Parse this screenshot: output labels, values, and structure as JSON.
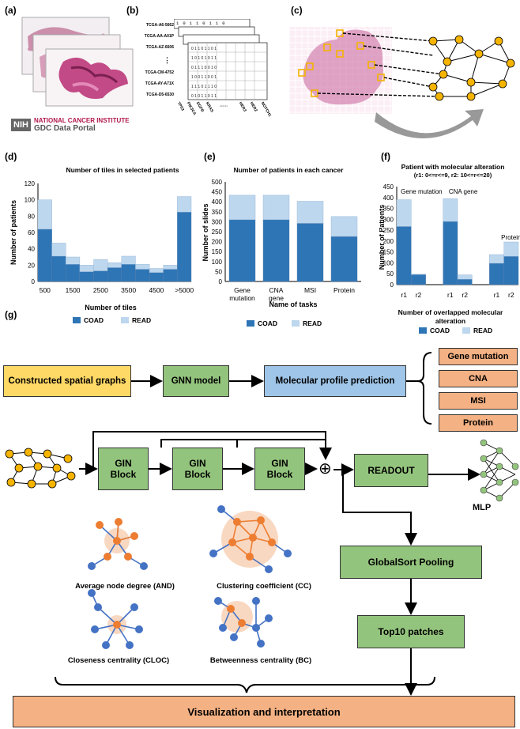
{
  "panels": {
    "a": "(a)",
    "b": "(b)",
    "c": "(c)",
    "d": "(d)",
    "e": "(e)",
    "f": "(f)",
    "g": "(g)"
  },
  "logo": {
    "nih": "NIH",
    "institute": "NATIONAL CANCER INSTITUTE",
    "portal": "GDC Data Portal"
  },
  "matrix": {
    "rows": [
      "TCGA-A6-5662",
      "TCGA-AA-A01P",
      "TCGA-AZ-6606",
      "⋮",
      "TCGA-CM-4752",
      "TCGA-AY-A71X",
      "TCGA-D5-6530"
    ],
    "cols": [
      "TP53",
      "PIK3CA",
      "EGFR",
      "KRAS",
      "······",
      "HER3",
      "HER2",
      "NOTCH1"
    ],
    "first_row": [
      "1",
      "0",
      "1",
      "1",
      "0",
      "1",
      "1",
      "0"
    ]
  },
  "colors": {
    "coad": "#2e75b6",
    "read": "#bdd7ee",
    "node": "#f5b400",
    "orange": "#f4b183",
    "green": "#93c47d",
    "blue": "#9fc5e8",
    "yellow": "#ffd966"
  },
  "legend": {
    "coad": "COAD",
    "read": "READ"
  },
  "chart_data": [
    {
      "type": "bar",
      "title": "Number of  tiles in selected patients",
      "xlabel": "Number of tiles",
      "ylabel": "Number of patients",
      "xticks": [
        "500",
        "1500",
        "2500",
        "3500",
        "4500",
        ">5000"
      ],
      "ylim": [
        0,
        120
      ],
      "yticks": [
        0,
        20,
        40,
        60,
        80,
        100,
        120
      ],
      "stacked": true,
      "series": [
        {
          "name": "COAD",
          "values": [
            64,
            31,
            21,
            12,
            13,
            17,
            21,
            15,
            11,
            15,
            85
          ]
        },
        {
          "name": "READ",
          "values": [
            36,
            16,
            9,
            8,
            14,
            6,
            10,
            6,
            5,
            5,
            19
          ]
        }
      ]
    },
    {
      "type": "bar",
      "title": "Number of patients in each cancer",
      "xlabel": "Name of tasks",
      "ylabel": "Number of slides",
      "categories": [
        "Gene\nmutation",
        "CNA\ngene",
        "MSI",
        "Protein"
      ],
      "ylim": [
        0,
        500
      ],
      "yticks": [
        0,
        50,
        100,
        150,
        200,
        250,
        300,
        350,
        400,
        450,
        500
      ],
      "stacked": true,
      "series": [
        {
          "name": "COAD",
          "values": [
            310,
            310,
            292,
            226
          ]
        },
        {
          "name": "READ",
          "values": [
            123,
            123,
            111,
            100
          ]
        }
      ]
    },
    {
      "type": "bar",
      "title": "Patient with molecular alteration",
      "subtitle": "(r1: 0<=r<=9, r2: 10<=r<=20)",
      "xlabel": "Number of overlapped molecular alteration",
      "ylabel": "Number of Patients",
      "categories": [
        "r1",
        "r2",
        "r1",
        "r2",
        "r1",
        "r2"
      ],
      "groups": [
        "Gene mutation",
        "CNA gene",
        "Protein"
      ],
      "ylim": [
        0,
        450
      ],
      "yticks": [
        0,
        50,
        100,
        150,
        200,
        250,
        300,
        350,
        400,
        450
      ],
      "stacked": true,
      "series": [
        {
          "name": "COAD",
          "values": [
            267,
            46,
            290,
            25,
            98,
            130
          ]
        },
        {
          "name": "READ",
          "values": [
            123,
            2,
            105,
            20,
            40,
            66
          ]
        }
      ]
    }
  ],
  "flow": {
    "graphs": "Constructed spatial graphs",
    "gnn": "GNN model",
    "predict": "Molecular profile prediction",
    "targets": [
      "Gene mutation",
      "CNA",
      "MSI",
      "Protein"
    ]
  },
  "arch": {
    "gin": [
      "GIN",
      "Block"
    ],
    "plus": "⊕",
    "readout": "READOUT",
    "mlp": "MLP",
    "globalsort": "GlobalSort Pooling",
    "top10": "Top10 patches",
    "viz": "Visualization and interpretation"
  },
  "metrics": {
    "and": "Average node degree (AND)",
    "cc": "Clustering coefficient (CC)",
    "cloc": "Closeness centrality (CLOC)",
    "bc": "Betweenness centrality (BC)"
  }
}
